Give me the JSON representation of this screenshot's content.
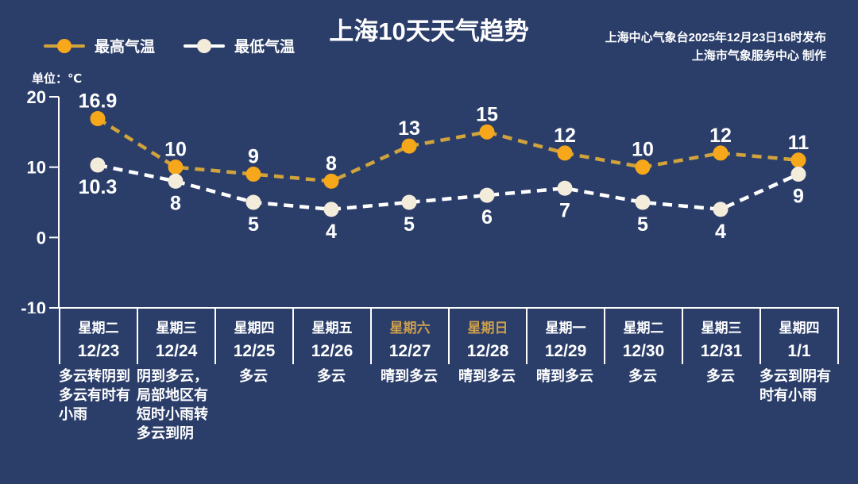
{
  "colors": {
    "background": "#2B3E6A",
    "text": "#FFFFFF",
    "axis": "#FFFFFF",
    "separator": "#FFFFFF",
    "weekend_text": "#CE9F4C"
  },
  "header": {
    "title": "上海10天天气趋势",
    "issuer_line1": "上海中心气象台2025年12月23日16时发布",
    "issuer_line2": "上海市气象服务中心 制作"
  },
  "chart_data": {
    "type": "line",
    "title": "上海10天天气趋势",
    "unit_label": "单位：℃",
    "categories": [
      "12/23",
      "12/24",
      "12/25",
      "12/26",
      "12/27",
      "12/28",
      "12/29",
      "12/30",
      "12/31",
      "1/1"
    ],
    "series": [
      {
        "name": "最高气温",
        "values": [
          16.9,
          10,
          9,
          8,
          13,
          15,
          12,
          10,
          12,
          11
        ],
        "line_color": "#D1A33C",
        "marker_color": "#F7A81A",
        "label_color": "#ECA23B"
      },
      {
        "name": "最低气温",
        "values": [
          10.3,
          8,
          5,
          4,
          5,
          6,
          7,
          5,
          4,
          9
        ],
        "line_color": "#FFFFFF",
        "marker_color": "#F4ECDB",
        "label_color": "#FFFFFF"
      }
    ],
    "ylim": [
      -10,
      20
    ],
    "yticks": [
      20,
      10,
      0,
      -10
    ],
    "grid": false,
    "line_style": "dashed",
    "legend_position": "top-left"
  },
  "forecast_table": {
    "columns": [
      {
        "day": "星期二",
        "date": "12/23",
        "weather": "多云转阴到多云有时有小雨",
        "weekend": false
      },
      {
        "day": "星期三",
        "date": "12/24",
        "weather": "阴到多云，局部地区有短时小雨转多云到阴",
        "weekend": false
      },
      {
        "day": "星期四",
        "date": "12/25",
        "weather": "多云",
        "weekend": false
      },
      {
        "day": "星期五",
        "date": "12/26",
        "weather": "多云",
        "weekend": false
      },
      {
        "day": "星期六",
        "date": "12/27",
        "weather": "晴到多云",
        "weekend": true
      },
      {
        "day": "星期日",
        "date": "12/28",
        "weather": "晴到多云",
        "weekend": true
      },
      {
        "day": "星期一",
        "date": "12/29",
        "weather": "晴到多云",
        "weekend": false
      },
      {
        "day": "星期二",
        "date": "12/30",
        "weather": "多云",
        "weekend": false
      },
      {
        "day": "星期三",
        "date": "12/31",
        "weather": "多云",
        "weekend": false
      },
      {
        "day": "星期四",
        "date": "1/1",
        "weather": "多云到阴有时有小雨",
        "weekend": false
      }
    ]
  }
}
